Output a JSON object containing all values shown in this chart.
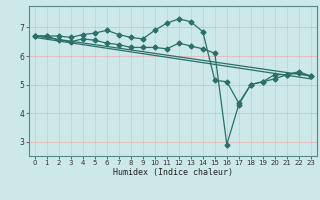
{
  "title": "",
  "xlabel": "Humidex (Indice chaleur)",
  "ylabel": "",
  "bg_color": "#cce8e8",
  "grid_color_v": "#b0d4d4",
  "grid_color_h": "#e8b0b0",
  "line_color": "#2a7068",
  "xlim": [
    -0.5,
    23.5
  ],
  "ylim": [
    2.5,
    7.75
  ],
  "xticks": [
    0,
    1,
    2,
    3,
    4,
    5,
    6,
    7,
    8,
    9,
    10,
    11,
    12,
    13,
    14,
    15,
    16,
    17,
    18,
    19,
    20,
    21,
    22,
    23
  ],
  "yticks": [
    3,
    4,
    5,
    6,
    7
  ],
  "line1_x": [
    0,
    1,
    2,
    3,
    4,
    5,
    6,
    7,
    8,
    9,
    10,
    11,
    12,
    13,
    14,
    15,
    16,
    17,
    18,
    19,
    20,
    21,
    22,
    23
  ],
  "line1_y": [
    6.7,
    6.7,
    6.7,
    6.65,
    6.75,
    6.8,
    6.9,
    6.75,
    6.65,
    6.6,
    6.9,
    7.15,
    7.3,
    7.2,
    6.85,
    5.15,
    5.1,
    4.35,
    5.0,
    5.1,
    5.35,
    5.35,
    5.45,
    5.3
  ],
  "line2_x": [
    0,
    1,
    2,
    3,
    4,
    5,
    6,
    7,
    8,
    9,
    10,
    11,
    12,
    13,
    14,
    15,
    16,
    17,
    18,
    19,
    20,
    21,
    22,
    23
  ],
  "line2_y": [
    6.7,
    6.7,
    6.55,
    6.5,
    6.6,
    6.55,
    6.45,
    6.4,
    6.3,
    6.3,
    6.3,
    6.25,
    6.45,
    6.35,
    6.25,
    6.1,
    2.9,
    4.3,
    5.0,
    5.1,
    5.2,
    5.35,
    5.4,
    5.3
  ],
  "line3_x": [
    0,
    23
  ],
  "line3_y": [
    6.7,
    5.3
  ],
  "line4_x": [
    0,
    23
  ],
  "line4_y": [
    6.65,
    5.2
  ]
}
